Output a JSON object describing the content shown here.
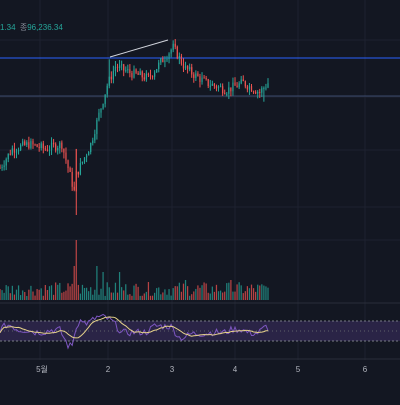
{
  "readout": {
    "left_value": "1.34",
    "close_label": "종",
    "close_value": "96,236.34"
  },
  "x_axis": {
    "tick_labels": [
      "5월",
      "2",
      "3",
      "4",
      "5",
      "6"
    ]
  },
  "colors": {
    "background": "#131722",
    "up": "#26a69a",
    "down": "#ef5350",
    "rsi_line": "#7e57c2",
    "rsi_ma": "#e6d28a",
    "rsi_band": "#2a2446",
    "grid": "#1e2230",
    "price_line": "#2962ff"
  },
  "chart_data": [
    {
      "type": "candlestick",
      "title": "",
      "description_source": "price panel (values in relative price units; axis labels not visible)",
      "categories_count": 131,
      "horizontal_lines": [
        206,
        196
      ],
      "trendline": {
        "from_index": 53,
        "from_value": 205,
        "to_index": 83,
        "to_value": 213
      },
      "ylim": [
        140,
        225
      ],
      "grid": true
    },
    {
      "type": "bar",
      "title": "",
      "description_source": "volume histogram (relative units)",
      "ylim": [
        0,
        60
      ]
    },
    {
      "type": "line",
      "title": "",
      "description_source": "RSI oscillator with moving average",
      "ylim": [
        0,
        100
      ],
      "bands": [
        30,
        70
      ]
    }
  ]
}
